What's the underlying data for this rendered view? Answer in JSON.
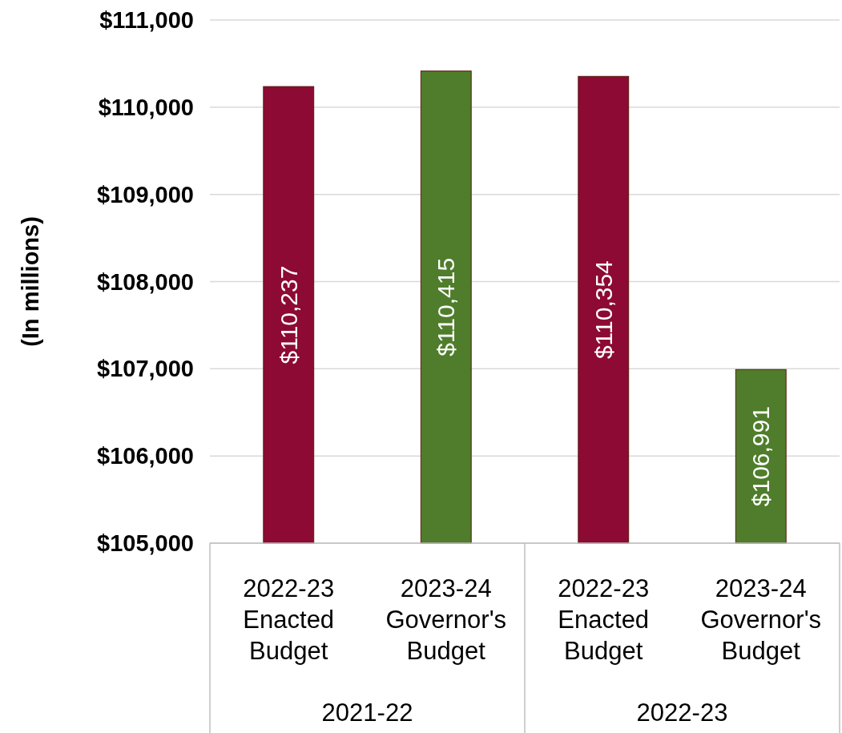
{
  "chart_data": {
    "type": "bar",
    "ylabel": "(In millions)",
    "categories": [
      "2022-23 Enacted Budget",
      "2023-24 Governor's Budget",
      "2022-23 Enacted Budget",
      "2023-24 Governor's Budget"
    ],
    "values": [
      110237,
      110415,
      110354,
      106991
    ],
    "colors": [
      "#8c0a33",
      "#4f7d2b",
      "#8c0a33",
      "#4f7d2b"
    ],
    "value_labels": [
      "$110,237",
      "$110,415",
      "$110,354",
      "$106,991"
    ],
    "ylim": [
      105000,
      111000
    ],
    "yticks": [
      {
        "value": 105000,
        "label": "$105,000"
      },
      {
        "value": 106000,
        "label": "$106,000"
      },
      {
        "value": 107000,
        "label": "$107,000"
      },
      {
        "value": 108000,
        "label": "$108,000"
      },
      {
        "value": 109000,
        "label": "$109,000"
      },
      {
        "value": 110000,
        "label": "$110,000"
      },
      {
        "value": 111000,
        "label": "$111,000"
      }
    ],
    "grid": "y",
    "annotations": [
      "2021-22",
      "2022-23"
    ]
  }
}
